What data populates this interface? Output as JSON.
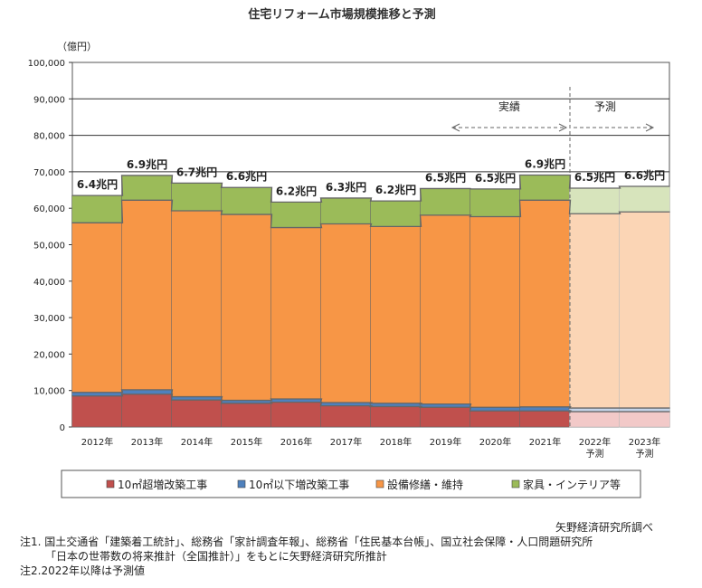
{
  "chart_data": {
    "type": "bar",
    "title": "住宅リフォーム市場規模推移と予測",
    "ylabel": "（億円）",
    "ylim": [
      0,
      100000
    ],
    "yticks": [
      "0",
      "10,000",
      "20,000",
      "30,000",
      "40,000",
      "50,000",
      "60,000",
      "70,000",
      "80,000",
      "90,000",
      "100,000"
    ],
    "categories": [
      "2012年",
      "2013年",
      "2014年",
      "2015年",
      "2016年",
      "2017年",
      "2018年",
      "2019年",
      "2020年",
      "2021年",
      "2022年\n予測",
      "2023年\n予測"
    ],
    "series": [
      {
        "name": "10㎡超増改築工事",
        "color": "#C0504D",
        "forecast_color": "#F2C9C8",
        "values": [
          8500,
          9000,
          7400,
          6500,
          6800,
          5800,
          5600,
          5400,
          4400,
          4400,
          4200,
          4200
        ]
      },
      {
        "name": "10㎡以下増改築工事",
        "color": "#4F81BD",
        "forecast_color": "#C5D5EA",
        "values": [
          1000,
          1200,
          900,
          800,
          900,
          900,
          900,
          900,
          1000,
          1100,
          1000,
          1000
        ]
      },
      {
        "name": "設備修繕・維持",
        "color": "#F79646",
        "forecast_color": "#FBD5B5",
        "values": [
          46500,
          52000,
          51000,
          51000,
          47000,
          49000,
          48500,
          51800,
          52300,
          56700,
          53300,
          53800
        ]
      },
      {
        "name": "家具・インテリア等",
        "color": "#9BBB59",
        "forecast_color": "#D7E4BC",
        "values": [
          7500,
          6800,
          7600,
          7400,
          7000,
          7100,
          7000,
          7300,
          7600,
          6900,
          7000,
          7000
        ]
      }
    ],
    "totals": [
      "6.4兆円",
      "6.9兆円",
      "6.7兆円",
      "6.6兆円",
      "6.2兆円",
      "6.3兆円",
      "6.2兆円",
      "6.5兆円",
      "6.5兆円",
      "6.9兆円",
      "6.5兆円",
      "6.6兆円"
    ],
    "forecast_start_index": 10,
    "annotations": {
      "actual": "実績",
      "forecast": "予測"
    },
    "grid": true,
    "legend_position": "bottom"
  },
  "notes": {
    "source": "矢野経済研究所調べ",
    "note1_line1": "注1. 国土交通省「建築着工統計」、総務省「家計調査年報」、総務省「住民基本台帳」、国立社会保障・人口問題研究所",
    "note1_line2": "「日本の世帯数の将来推計（全国推計）」をもとに矢野経済研究所推計",
    "note2": "注2.2022年以降は予測値"
  }
}
